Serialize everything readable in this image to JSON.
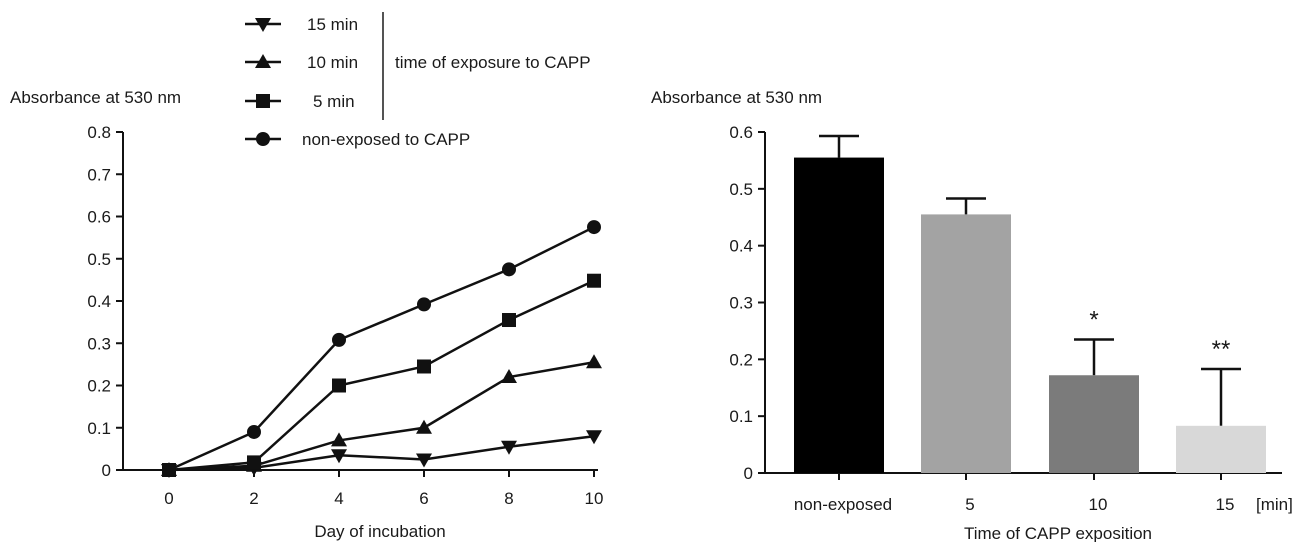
{
  "chart_data": [
    {
      "type": "line",
      "ylabel": "Absorbance at 530 nm",
      "xlabel": "Day of incubation",
      "x": [
        0,
        2,
        4,
        6,
        8,
        10
      ],
      "xticks": [
        "0",
        "2",
        "4",
        "6",
        "8",
        "10"
      ],
      "ylim": [
        0,
        0.8
      ],
      "yticks": [
        "0",
        "0.1",
        "0.2",
        "0.3",
        "0.4",
        "0.5",
        "0.6",
        "0.7",
        "0.8"
      ],
      "series": [
        {
          "name": "15 min",
          "marker": "triangle-down",
          "values": [
            0,
            0.005,
            0.035,
            0.025,
            0.055,
            0.08
          ]
        },
        {
          "name": "10 min",
          "marker": "triangle-up",
          "values": [
            0,
            0.01,
            0.07,
            0.1,
            0.22,
            0.255
          ]
        },
        {
          "name": "5 min",
          "marker": "square",
          "values": [
            0,
            0.018,
            0.2,
            0.245,
            0.355,
            0.448
          ]
        },
        {
          "name": "non-exposed to CAPP",
          "marker": "circle",
          "values": [
            0,
            0.09,
            0.308,
            0.392,
            0.475,
            0.575
          ]
        }
      ],
      "legend_group_label": "time of exposure to CAPP",
      "legend_position": "top"
    },
    {
      "type": "bar",
      "ylabel": "Absorbance at 530 nm",
      "xlabel": "Time of CAPP exposition",
      "x_unit": "[min]",
      "categories": [
        "non-exposed",
        "5",
        "10",
        "15"
      ],
      "values": [
        0.555,
        0.455,
        0.172,
        0.083
      ],
      "errors": [
        0.038,
        0.028,
        0.063,
        0.1
      ],
      "significance": [
        "",
        "",
        "*",
        "**"
      ],
      "colors": [
        "#000000",
        "#a3a3a3",
        "#7b7b7b",
        "#d8d8d8"
      ],
      "ylim": [
        0,
        0.6
      ],
      "yticks": [
        "0",
        "0.1",
        "0.2",
        "0.3",
        "0.4",
        "0.5",
        "0.6"
      ]
    }
  ]
}
